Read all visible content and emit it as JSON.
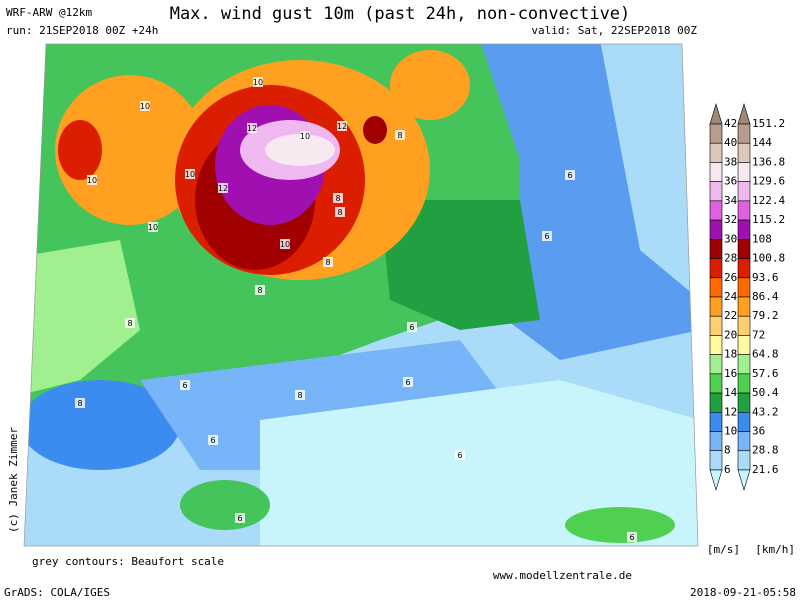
{
  "header": {
    "model": "WRF-ARW @12km",
    "title": "Max. wind gust 10m (past 24h, non-convective)",
    "run": "run: 21SEP2018 00Z +24h",
    "valid": "valid: Sat, 22SEP2018 00Z"
  },
  "colorbar": {
    "ms_labels": [
      42,
      40,
      38,
      36,
      34,
      32,
      30,
      28,
      26,
      24,
      22,
      20,
      18,
      16,
      14,
      12,
      10,
      8,
      6
    ],
    "kmh_labels": [
      151.2,
      144,
      136.8,
      129.6,
      122.4,
      115.2,
      108,
      100.8,
      93.6,
      86.4,
      79.2,
      72,
      64.8,
      57.6,
      50.4,
      43.2,
      36,
      28.8,
      21.6
    ],
    "colors": [
      "#a08878",
      "#b89c8c",
      "#dcc8b8",
      "#f8e8f0",
      "#f0b8f0",
      "#e060e0",
      "#a010b0",
      "#a00000",
      "#dc1e00",
      "#ff6a00",
      "#ffa020",
      "#ffd070",
      "#fffaa0",
      "#a0f090",
      "#50d050",
      "#20a040",
      "#3c8cf0",
      "#78b4f8",
      "#aadcfa",
      "#c8f5fc"
    ],
    "ms_unit": "[m/s]",
    "kmh_unit": "[km/h]"
  },
  "map": {
    "contour_labels": [
      10,
      10,
      12,
      12,
      10,
      8,
      10,
      10,
      12,
      10,
      10,
      8,
      8,
      8,
      6,
      6,
      8,
      8,
      8,
      6,
      6,
      6,
      8,
      6,
      6,
      6,
      6
    ]
  },
  "footer": {
    "contours_note": "grey contours: Beaufort scale",
    "copyright": "(c) Janek Zimmer",
    "website": "www.modellzentrale.de",
    "software": "GrADS: COLA/IGES",
    "timestamp": "2018-09-21-05:58"
  }
}
